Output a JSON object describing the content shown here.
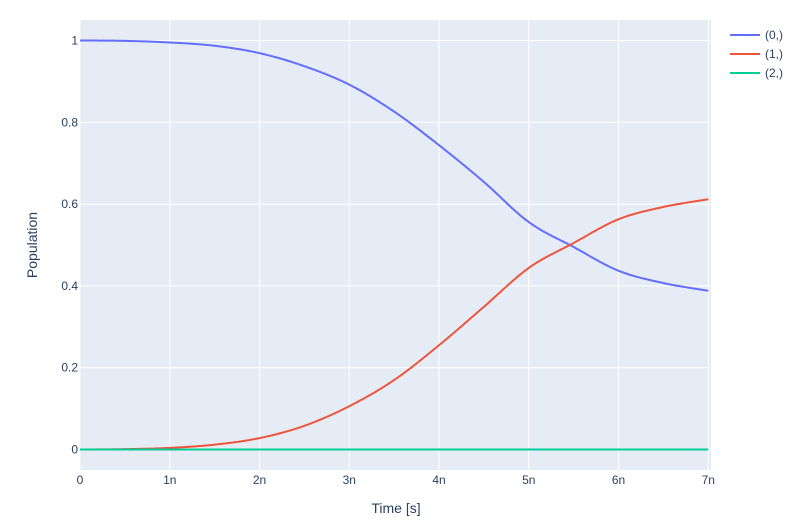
{
  "chart_data": {
    "type": "line",
    "title": "",
    "xlabel": "Time [s]",
    "ylabel": "Population",
    "xlim": [
      0,
      7.03e-09
    ],
    "ylim": [
      -0.05,
      1.05
    ],
    "x_ticks": [
      {
        "value": 0,
        "label": "0"
      },
      {
        "value": 1e-09,
        "label": "1n"
      },
      {
        "value": 2e-09,
        "label": "2n"
      },
      {
        "value": 3e-09,
        "label": "3n"
      },
      {
        "value": 4e-09,
        "label": "4n"
      },
      {
        "value": 5e-09,
        "label": "5n"
      },
      {
        "value": 6e-09,
        "label": "6n"
      },
      {
        "value": 7e-09,
        "label": "7n"
      }
    ],
    "y_ticks": [
      {
        "value": 0,
        "label": "0"
      },
      {
        "value": 0.2,
        "label": "0.2"
      },
      {
        "value": 0.4,
        "label": "0.4"
      },
      {
        "value": 0.6,
        "label": "0.6"
      },
      {
        "value": 0.8,
        "label": "0.8"
      },
      {
        "value": 1,
        "label": "1"
      }
    ],
    "grid": true,
    "legend_position": "top-right, outside plot",
    "plot_background": "#e5ecf6",
    "series": [
      {
        "name": "(0,)",
        "color": "#636efa",
        "x": [
          0,
          5e-10,
          1e-09,
          1.5e-09,
          2e-09,
          2.5e-09,
          3e-09,
          3.5e-09,
          4e-09,
          4.5e-09,
          5e-09,
          5.5e-09,
          6e-09,
          6.5e-09,
          7e-09
        ],
        "y": [
          1.0,
          0.999,
          0.995,
          0.987,
          0.969,
          0.937,
          0.892,
          0.826,
          0.744,
          0.654,
          0.556,
          0.495,
          0.437,
          0.407,
          0.388
        ]
      },
      {
        "name": "(1,)",
        "color": "#ef553b",
        "x": [
          0,
          5e-10,
          1e-09,
          1.5e-09,
          2e-09,
          2.5e-09,
          3e-09,
          3.5e-09,
          4e-09,
          4.5e-09,
          5e-09,
          5.5e-09,
          6e-09,
          6.5e-09,
          7e-09
        ],
        "y": [
          0.0,
          0.001,
          0.004,
          0.012,
          0.028,
          0.058,
          0.106,
          0.17,
          0.255,
          0.349,
          0.444,
          0.505,
          0.563,
          0.593,
          0.612
        ]
      },
      {
        "name": "(2,)",
        "color": "#00cc96",
        "x": [
          0,
          1e-09,
          2e-09,
          3e-09,
          4e-09,
          5e-09,
          6e-09,
          7e-09
        ],
        "y": [
          0.0,
          0.0,
          0.0,
          0.0,
          0.0,
          0.0,
          0.0,
          0.0
        ]
      }
    ]
  }
}
